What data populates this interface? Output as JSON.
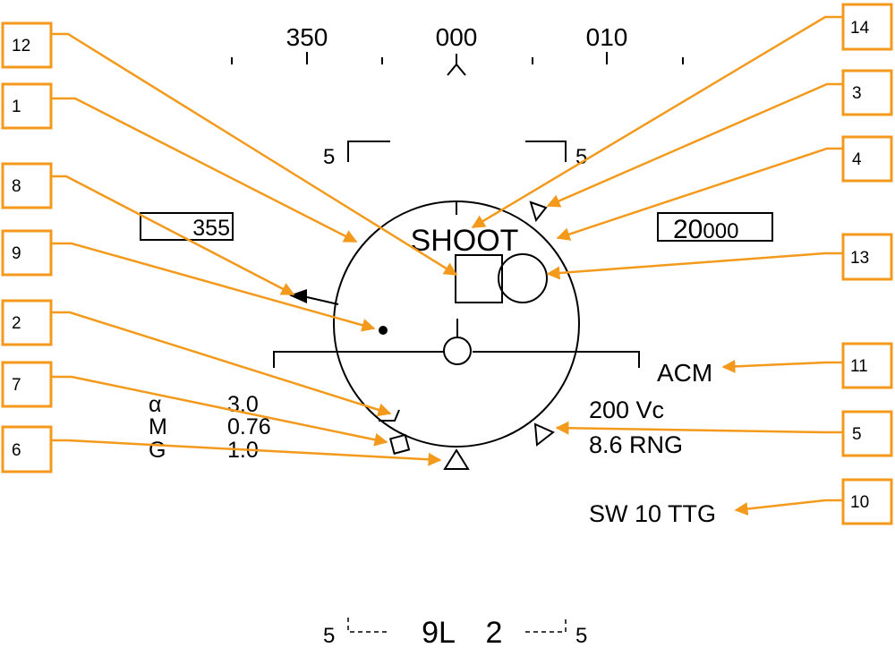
{
  "heading_tape": {
    "labels": [
      "350",
      "000",
      "010"
    ]
  },
  "pitch": {
    "upper_left": "5",
    "upper_right": "5",
    "lower_left": "5",
    "lower_right": "5"
  },
  "speed_box": "355",
  "altitude_box": {
    "big": "20",
    "small": "000"
  },
  "shoot_cue": "SHOOT",
  "mode": "ACM",
  "closure": "200 Vc",
  "range": "8.6 RNG",
  "time_to_go": "SW 10 TTG",
  "flight_data": [
    {
      "label": "α",
      "value": "3.0"
    },
    {
      "label": "M",
      "value": "0.76"
    },
    {
      "label": "G",
      "value": "1.0"
    }
  ],
  "bottom": {
    "gear": "9L",
    "count": "2"
  },
  "callouts": [
    "1",
    "2",
    "3",
    "4",
    "5",
    "6",
    "7",
    "8",
    "9",
    "10",
    "11",
    "12",
    "13",
    "14"
  ],
  "colors": {
    "callout": "#f39a1c",
    "symbology": "#000000"
  }
}
